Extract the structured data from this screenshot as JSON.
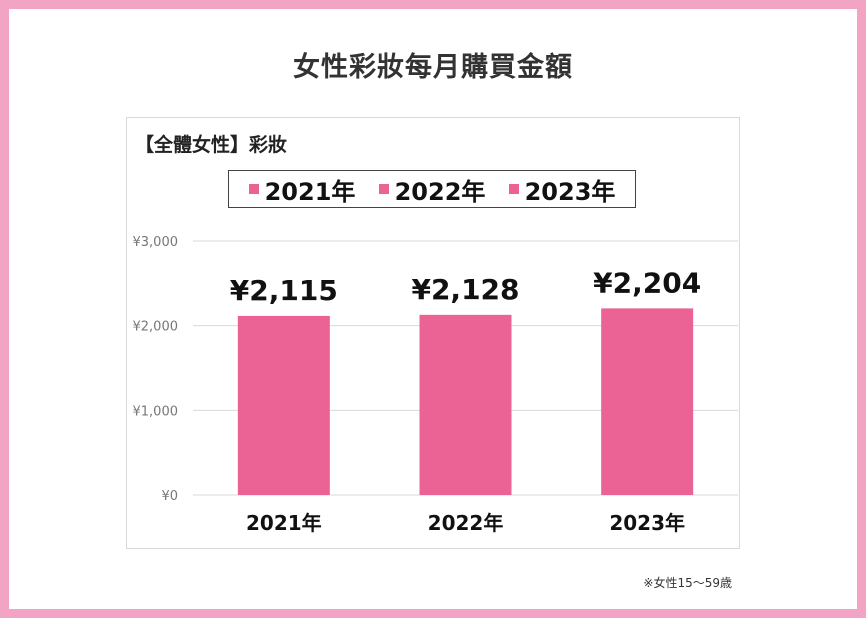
{
  "title": "女性彩妝每月購買金額",
  "footnote": "※女性15〜59歳",
  "colors": {
    "bar": "#eb6395",
    "frame": "#f2a4c4",
    "grid": "#d9d9d9"
  },
  "chart_data": {
    "type": "bar",
    "subtitle": "【全體女性】彩妝",
    "categories": [
      "2021年",
      "2022年",
      "2023年"
    ],
    "values": [
      2115,
      2128,
      2204
    ],
    "data_labels": [
      "¥2,115",
      "¥2,128",
      "¥2,204"
    ],
    "legend": [
      "2021年",
      "2022年",
      "2023年"
    ],
    "legend_position": "top",
    "y_ticks": [
      "¥0",
      "¥1,000",
      "¥2,000",
      "¥3,000"
    ],
    "y_tick_values": [
      0,
      1000,
      2000,
      3000
    ],
    "ylim": [
      0,
      3000
    ],
    "grid": true
  }
}
